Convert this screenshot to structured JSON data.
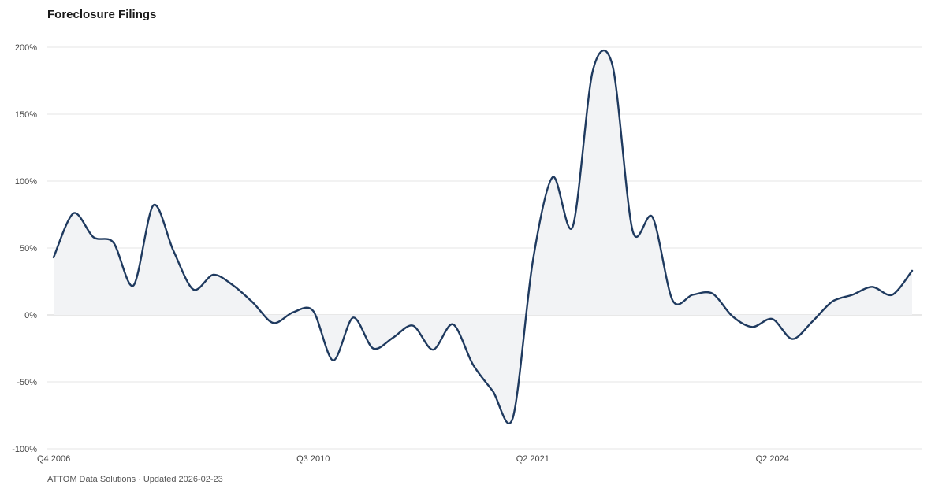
{
  "title": "Foreclosure Filings",
  "footer": "ATTOM Data Solutions · Updated 2026-02-23",
  "colors": {
    "line": "#1f3a5f",
    "area": "#f2f3f5",
    "grid": "#e6e6e6"
  },
  "chart_data": {
    "type": "area",
    "title": "Foreclosure Filings",
    "xlabel": "",
    "ylabel": "",
    "ylim": [
      -100,
      200
    ],
    "yticks": [
      "200%",
      "150%",
      "100%",
      "50%",
      "0%",
      "-50%",
      "-100%"
    ],
    "xticks": [
      "Q4 2006",
      "Q3 2010",
      "Q2 2021",
      "Q2 2024"
    ],
    "grid": true,
    "values": [
      43,
      76,
      58,
      54,
      22,
      82,
      48,
      19,
      30,
      22,
      9,
      -6,
      2,
      3,
      -34,
      -2,
      -25,
      -17,
      -8,
      -26,
      -7,
      -37,
      -57,
      -77,
      40,
      103,
      66,
      182,
      186,
      63,
      73,
      11,
      15,
      16,
      -1,
      -9,
      -3,
      -18,
      -5,
      10,
      15,
      21,
      15,
      33
    ]
  }
}
